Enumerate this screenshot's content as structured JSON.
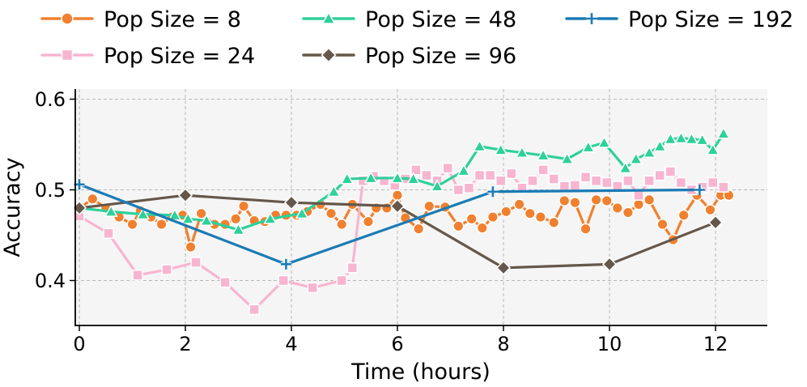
{
  "chart_data": {
    "type": "line",
    "title": "",
    "xlabel": "Time (hours)",
    "ylabel": "Accuracy",
    "xlim": [
      -0.1,
      13.0
    ],
    "ylim": [
      0.35,
      0.61
    ],
    "xticks": [
      0,
      2,
      4,
      6,
      8,
      10,
      12
    ],
    "xtick_labels": [
      "0",
      "2",
      "4",
      "6",
      "8",
      "10",
      "12"
    ],
    "yticks": [
      0.4,
      0.5,
      0.6
    ],
    "ytick_labels": [
      "0.4",
      "0.5",
      "0.6"
    ],
    "grid": true,
    "legend_position": "top",
    "series": [
      {
        "name": "Pop Size = 8",
        "label": "Pop Size = 8",
        "color": "#F0802F",
        "marker": "circle",
        "x": [
          0.0,
          0.25,
          0.5,
          0.75,
          1.0,
          1.15,
          1.35,
          1.55,
          1.75,
          1.95,
          2.1,
          2.3,
          2.55,
          2.75,
          2.95,
          3.1,
          3.3,
          3.5,
          3.7,
          3.9,
          4.1,
          4.3,
          4.55,
          4.75,
          4.95,
          5.15,
          5.45,
          5.6,
          5.8,
          6.0,
          6.15,
          6.4,
          6.6,
          6.9,
          7.15,
          7.4,
          7.6,
          7.8,
          8.05,
          8.3,
          8.5,
          8.7,
          8.95,
          9.15,
          9.35,
          9.55,
          9.75,
          9.95,
          10.15,
          10.35,
          10.55,
          10.75,
          11.0,
          11.2,
          11.4,
          11.65,
          11.9,
          12.1,
          12.25
        ],
        "y": [
          0.48,
          0.49,
          0.48,
          0.47,
          0.462,
          0.477,
          0.47,
          0.462,
          0.47,
          0.472,
          0.437,
          0.474,
          0.462,
          0.462,
          0.468,
          0.482,
          0.466,
          0.465,
          0.472,
          0.472,
          0.472,
          0.476,
          0.484,
          0.474,
          0.462,
          0.484,
          0.465,
          0.48,
          0.48,
          0.494,
          0.469,
          0.457,
          0.482,
          0.481,
          0.46,
          0.468,
          0.458,
          0.47,
          0.476,
          0.484,
          0.474,
          0.47,
          0.464,
          0.488,
          0.486,
          0.457,
          0.489,
          0.488,
          0.48,
          0.475,
          0.484,
          0.489,
          0.462,
          0.445,
          0.472,
          0.494,
          0.478,
          0.494,
          0.494
        ]
      },
      {
        "name": "Pop Size = 24",
        "label": "Pop Size = 24",
        "color": "#F7B5D0",
        "marker": "square",
        "x": [
          0.0,
          0.55,
          1.1,
          1.65,
          2.2,
          2.75,
          3.3,
          3.85,
          4.4,
          4.95,
          5.15,
          5.35,
          5.55,
          5.75,
          5.95,
          6.15,
          6.35,
          6.55,
          6.75,
          6.95,
          7.15,
          7.35,
          7.55,
          7.75,
          7.95,
          8.15,
          8.35,
          8.55,
          8.75,
          8.95,
          9.15,
          9.35,
          9.55,
          9.75,
          9.95,
          10.15,
          10.35,
          10.55,
          10.75,
          10.95,
          11.15,
          11.35,
          11.55,
          11.75,
          11.95,
          12.15
        ],
        "y": [
          0.471,
          0.452,
          0.406,
          0.412,
          0.42,
          0.398,
          0.368,
          0.4,
          0.392,
          0.4,
          0.414,
          0.51,
          0.515,
          0.51,
          0.505,
          0.512,
          0.522,
          0.516,
          0.51,
          0.524,
          0.5,
          0.502,
          0.516,
          0.516,
          0.51,
          0.518,
          0.502,
          0.51,
          0.522,
          0.512,
          0.504,
          0.505,
          0.514,
          0.51,
          0.508,
          0.504,
          0.51,
          0.494,
          0.51,
          0.516,
          0.52,
          0.508,
          0.5,
          0.503,
          0.508,
          0.503
        ]
      },
      {
        "name": "Pop Size = 48",
        "label": "Pop Size = 48",
        "color": "#2DD19A",
        "marker": "triangle",
        "x": [
          0.0,
          0.6,
          1.2,
          1.8,
          2.05,
          2.4,
          3.0,
          3.6,
          4.2,
          4.8,
          5.05,
          5.5,
          6.0,
          6.3,
          6.75,
          7.25,
          7.55,
          7.95,
          8.35,
          8.75,
          9.2,
          9.6,
          9.9,
          10.3,
          10.5,
          10.75,
          10.95,
          11.15,
          11.35,
          11.55,
          11.75,
          11.95,
          12.15
        ],
        "y": [
          0.48,
          0.476,
          0.473,
          0.472,
          0.468,
          0.466,
          0.456,
          0.468,
          0.474,
          0.498,
          0.512,
          0.513,
          0.513,
          0.512,
          0.504,
          0.521,
          0.548,
          0.544,
          0.541,
          0.538,
          0.534,
          0.547,
          0.552,
          0.524,
          0.534,
          0.541,
          0.548,
          0.556,
          0.557,
          0.556,
          0.555,
          0.544,
          0.562
        ]
      },
      {
        "name": "Pop Size = 96",
        "label": "Pop Size = 96",
        "color": "#65574A",
        "marker": "diamond",
        "x": [
          0.0,
          2.0,
          4.0,
          6.0,
          8.0,
          10.0,
          12.0
        ],
        "y": [
          0.48,
          0.494,
          0.486,
          0.482,
          0.414,
          0.418,
          0.464
        ]
      },
      {
        "name": "Pop Size = 192",
        "label": "Pop Size = 192",
        "color": "#1B7BB5",
        "marker": "plus",
        "x": [
          0.0,
          3.9,
          7.8,
          11.7
        ],
        "y": [
          0.506,
          0.418,
          0.498,
          0.5
        ]
      }
    ]
  }
}
